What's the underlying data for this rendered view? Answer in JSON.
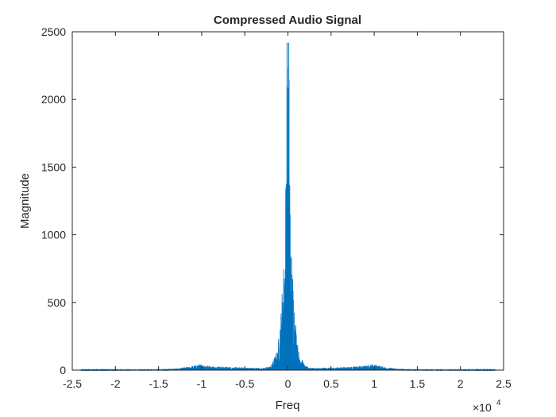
{
  "chart_data": {
    "type": "line",
    "title": "Compressed Audio Signal",
    "xlabel": "Freq",
    "ylabel": "Magnitude",
    "x_exponent_label": "×10^4",
    "x_exponent": {
      "base": "×10",
      "power": "4"
    },
    "xlim": [
      -2.5,
      2.5
    ],
    "ylim": [
      0,
      2500
    ],
    "x_units_scale": 10000,
    "xticks": [
      -2.5,
      -2,
      -1.5,
      -1,
      -0.5,
      0,
      0.5,
      1,
      1.5,
      2,
      2.5
    ],
    "xtick_labels": [
      "-2.5",
      "-2",
      "-1.5",
      "-1",
      "-0.5",
      "0",
      "0.5",
      "1",
      "1.5",
      "2",
      "2.5"
    ],
    "yticks": [
      0,
      500,
      1000,
      1500,
      2000,
      2500
    ],
    "ytick_labels": [
      "0",
      "500",
      "1000",
      "1500",
      "2000",
      "2500"
    ],
    "grid": false,
    "series": [
      {
        "color": "#0072BD",
        "envelope_x": [
          -2.4,
          -2.0,
          -1.6,
          -1.3,
          -1.15,
          -1.05,
          -1.0,
          -0.95,
          -0.9,
          -0.8,
          -0.7,
          -0.6,
          -0.5,
          -0.4,
          -0.3,
          -0.2,
          -0.12,
          -0.08,
          -0.05,
          -0.03,
          -0.02,
          -0.01,
          0,
          0.01,
          0.02,
          0.03,
          0.05,
          0.08,
          0.12,
          0.2,
          0.3,
          0.4,
          0.5,
          0.6,
          0.7,
          0.8,
          0.9,
          0.95,
          1.0,
          1.05,
          1.15,
          1.3,
          1.6,
          2.0,
          2.4
        ],
        "envelope_y": [
          2,
          3,
          5,
          12,
          25,
          40,
          45,
          38,
          30,
          28,
          25,
          22,
          20,
          18,
          15,
          30,
          150,
          450,
          800,
          1050,
          2000,
          2420,
          2100,
          2420,
          2000,
          1050,
          800,
          450,
          150,
          30,
          15,
          18,
          20,
          22,
          25,
          28,
          35,
          40,
          42,
          35,
          20,
          10,
          5,
          3,
          2
        ],
        "peaks": [
          {
            "x": -0.01,
            "y": 2420
          },
          {
            "x": 0.01,
            "y": 2420
          }
        ]
      }
    ]
  }
}
